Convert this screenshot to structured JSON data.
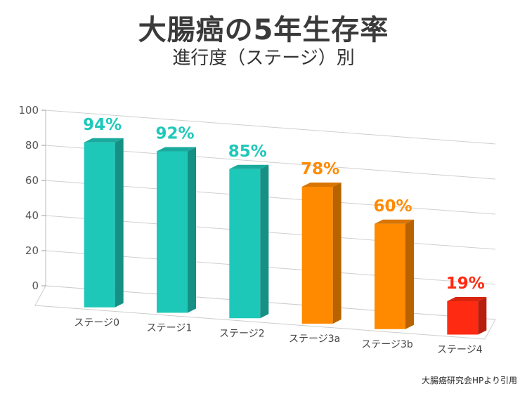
{
  "title": "大腸癌の5年生存率",
  "subtitle": "進行度（ステージ）別",
  "source": "大腸癌研究会HPより引用",
  "chart_data": {
    "type": "bar",
    "categories": [
      "ステージ0",
      "ステージ1",
      "ステージ2",
      "ステージ3a",
      "ステージ3b",
      "ステージ4"
    ],
    "values": [
      94,
      92,
      85,
      78,
      60,
      19
    ],
    "data_labels": [
      "94%",
      "92%",
      "85%",
      "78%",
      "60%",
      "19%"
    ],
    "ylim": [
      0,
      100
    ],
    "yticks": [
      "0",
      "20",
      "40",
      "60",
      "80",
      "100"
    ],
    "grid": true,
    "three_d": true,
    "colors": {
      "ステージ0": "#1ec8b9",
      "ステージ1": "#1ec8b9",
      "ステージ2": "#1ec8b9",
      "ステージ3a": "#ff8a00",
      "ステージ3b": "#ff8a00",
      "ステージ4": "#ff2a12"
    }
  }
}
